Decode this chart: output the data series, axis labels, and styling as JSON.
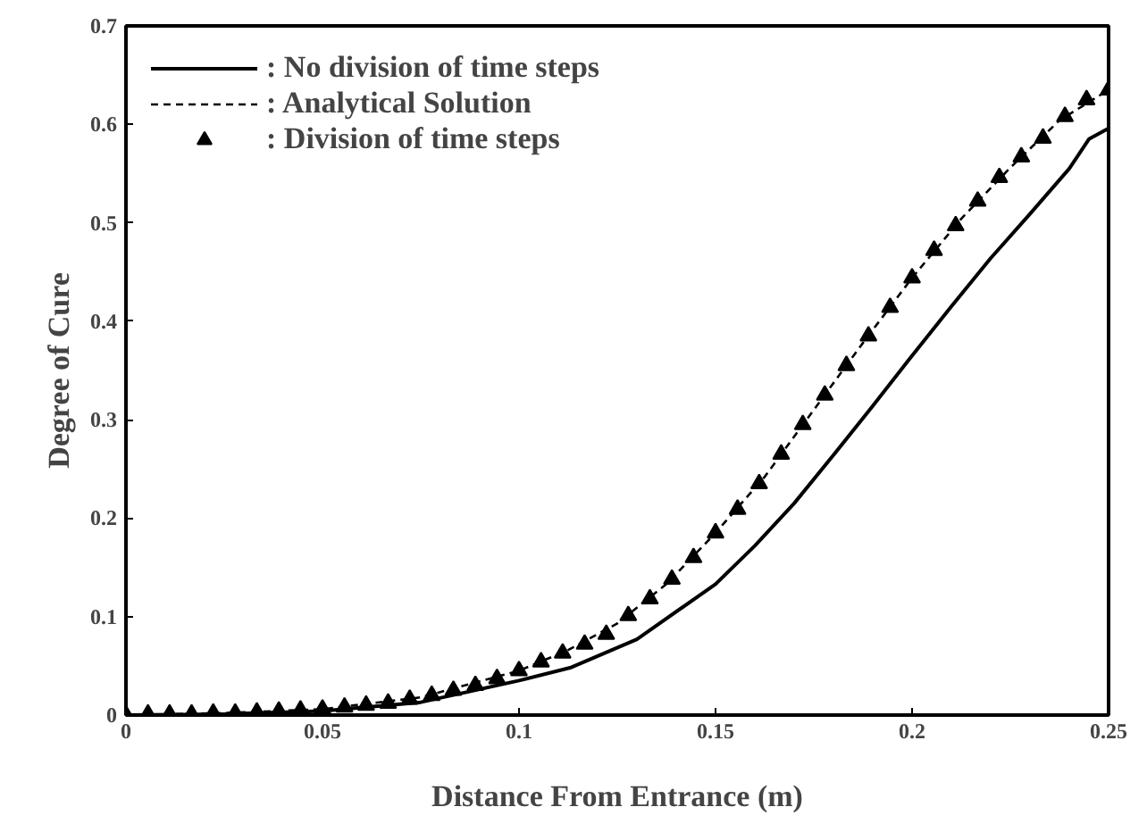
{
  "chart_data": {
    "type": "line",
    "xlabel": "Distance From Entrance (m)",
    "ylabel": "Degree of Cure",
    "xlim": [
      0,
      0.25
    ],
    "ylim": [
      0,
      0.7
    ],
    "xticks": [
      0,
      0.05,
      0.1,
      0.15,
      0.2,
      0.25
    ],
    "yticks": [
      0,
      0.1,
      0.2,
      0.3,
      0.4,
      0.5,
      0.6,
      0.7
    ],
    "grid": false,
    "legend": "top left",
    "series": [
      {
        "name": ": No division of time steps",
        "color": "#000000",
        "line_style": "solid",
        "marker": "none",
        "x": [
          0,
          0.025,
          0.05,
          0.075,
          0.1,
          0.113,
          0.13,
          0.15,
          0.16,
          0.17,
          0.18,
          0.19,
          0.2,
          0.21,
          0.22,
          0.23,
          0.24,
          0.245,
          0.25
        ],
        "values": [
          0,
          0.001,
          0.004,
          0.013,
          0.035,
          0.048,
          0.077,
          0.133,
          0.172,
          0.215,
          0.264,
          0.314,
          0.365,
          0.415,
          0.464,
          0.509,
          0.555,
          0.585,
          0.596
        ]
      },
      {
        "name": ": Analytical Solution",
        "color": "#000000",
        "line_style": "dashed",
        "marker": "none",
        "x": [
          0,
          0.025,
          0.05,
          0.075,
          0.1,
          0.1125,
          0.125,
          0.1375,
          0.15,
          0.1625,
          0.175,
          0.1875,
          0.2,
          0.2125,
          0.225,
          0.2375,
          0.25
        ],
        "values": [
          0,
          0.002,
          0.006,
          0.018,
          0.045,
          0.066,
          0.093,
          0.133,
          0.185,
          0.242,
          0.31,
          0.378,
          0.444,
          0.504,
          0.556,
          0.604,
          0.635
        ]
      },
      {
        "name": ": Division of time steps",
        "color": "#000000",
        "type": "scatter",
        "marker": "triangle",
        "x": [
          0,
          0.0056,
          0.0111,
          0.0167,
          0.0222,
          0.0278,
          0.0333,
          0.0389,
          0.0444,
          0.05,
          0.0556,
          0.0611,
          0.0667,
          0.0722,
          0.0778,
          0.0833,
          0.0889,
          0.0944,
          0.1,
          0.1056,
          0.1111,
          0.1167,
          0.1222,
          0.1278,
          0.1333,
          0.1389,
          0.1444,
          0.15,
          0.1556,
          0.1611,
          0.1667,
          0.1722,
          0.1778,
          0.1833,
          0.1889,
          0.1944,
          0.2,
          0.2056,
          0.2111,
          0.2167,
          0.2222,
          0.2278,
          0.2333,
          0.2389,
          0.2444,
          0.25
        ],
        "values": [
          0,
          0.001,
          0.001,
          0.001,
          0.002,
          0.002,
          0.003,
          0.004,
          0.005,
          0.006,
          0.008,
          0.01,
          0.012,
          0.016,
          0.02,
          0.025,
          0.03,
          0.037,
          0.045,
          0.054,
          0.063,
          0.072,
          0.082,
          0.101,
          0.118,
          0.138,
          0.16,
          0.185,
          0.209,
          0.235,
          0.265,
          0.295,
          0.325,
          0.355,
          0.385,
          0.414,
          0.444,
          0.472,
          0.497,
          0.522,
          0.546,
          0.567,
          0.586,
          0.608,
          0.625,
          0.635
        ]
      }
    ]
  }
}
